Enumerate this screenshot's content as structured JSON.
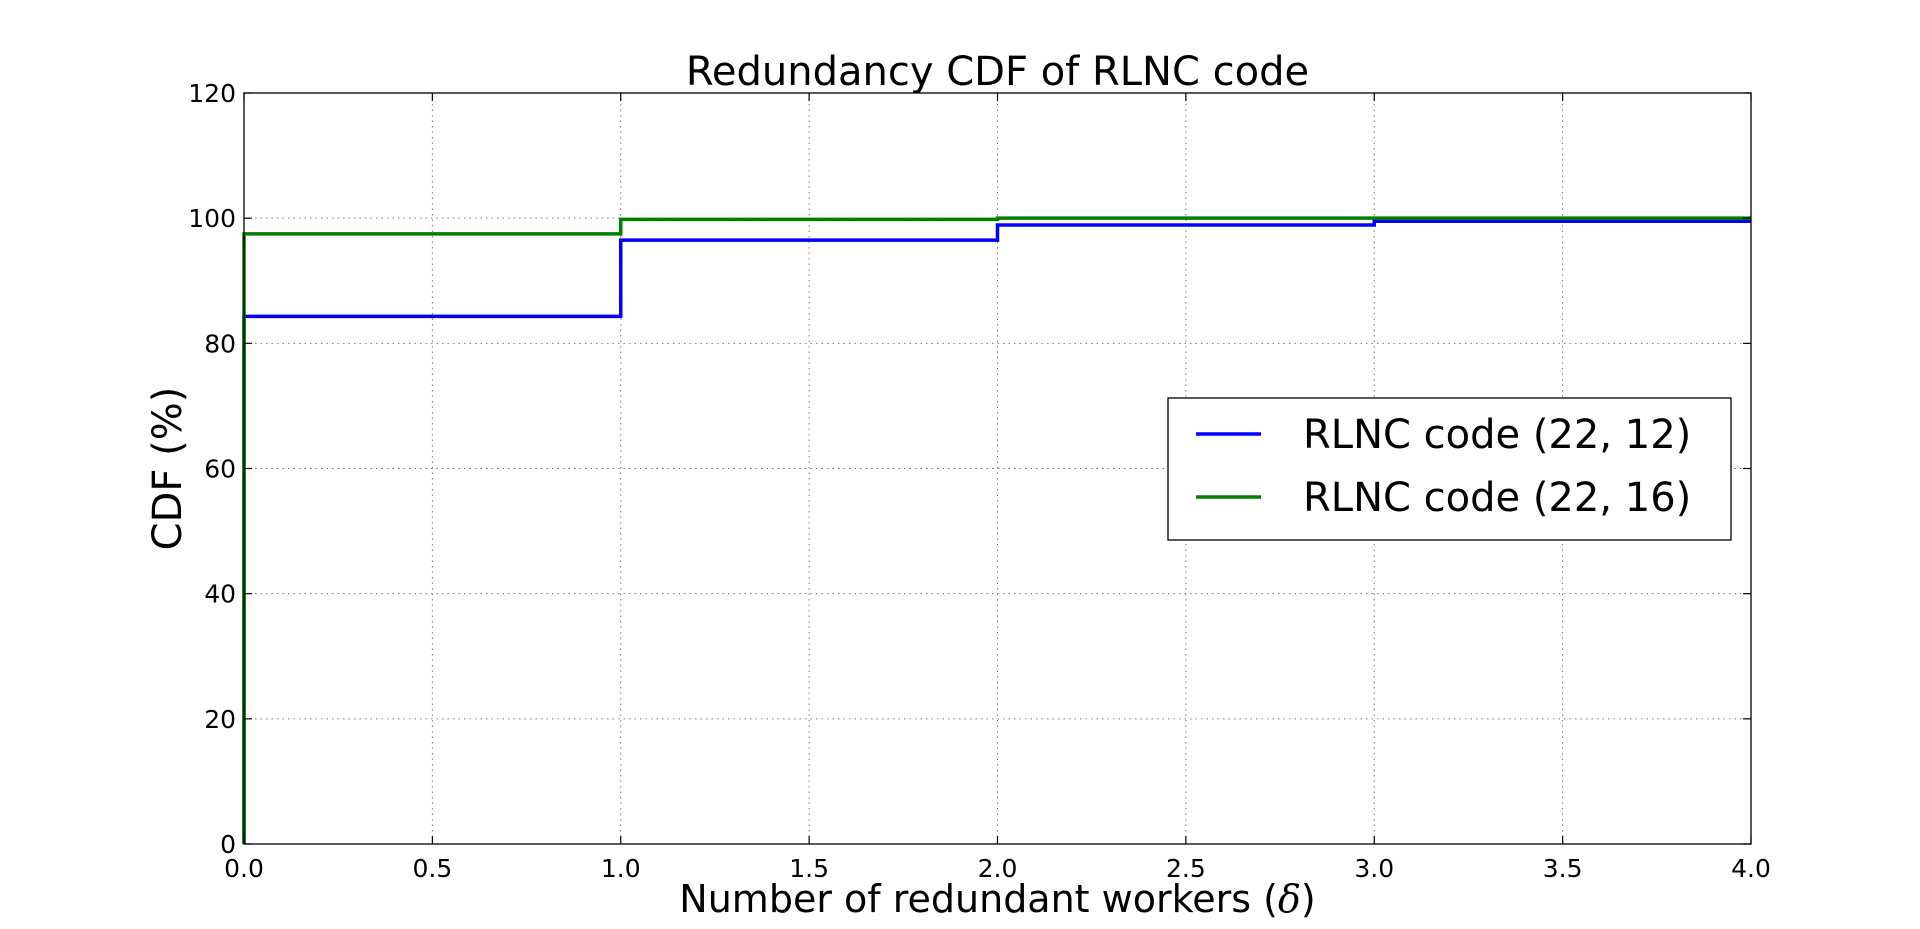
{
  "chart_data": {
    "type": "line",
    "step": true,
    "title": "Redundancy CDF of RLNC code",
    "xlabel_text": "Number of redundant workers (",
    "xlabel_symbol": "δ",
    "xlabel_close": ")",
    "ylabel": "CDF (%)",
    "xlim": [
      0.0,
      4.0
    ],
    "ylim": [
      0,
      120
    ],
    "xticks": [
      0.0,
      0.5,
      1.0,
      1.5,
      2.0,
      2.5,
      3.0,
      3.5,
      4.0
    ],
    "xtick_labels": [
      "0.0",
      "0.5",
      "1.0",
      "1.5",
      "2.0",
      "2.5",
      "3.0",
      "3.5",
      "4.0"
    ],
    "yticks": [
      0,
      20,
      40,
      60,
      80,
      100,
      120
    ],
    "ytick_labels": [
      "0",
      "20",
      "40",
      "60",
      "80",
      "100",
      "120"
    ],
    "grid": true,
    "legend_position": "center-right",
    "series": [
      {
        "name": "RLNC code (22, 12)",
        "color": "#0000ff",
        "x": [
          0,
          1,
          2,
          3,
          4
        ],
        "values": [
          84.3,
          96.5,
          98.9,
          99.5,
          99.5
        ]
      },
      {
        "name": "RLNC code (22, 16)",
        "color": "#007f00",
        "x": [
          0,
          1,
          2,
          3,
          4
        ],
        "values": [
          97.5,
          99.8,
          100.0,
          100.0,
          100.0
        ]
      }
    ]
  }
}
